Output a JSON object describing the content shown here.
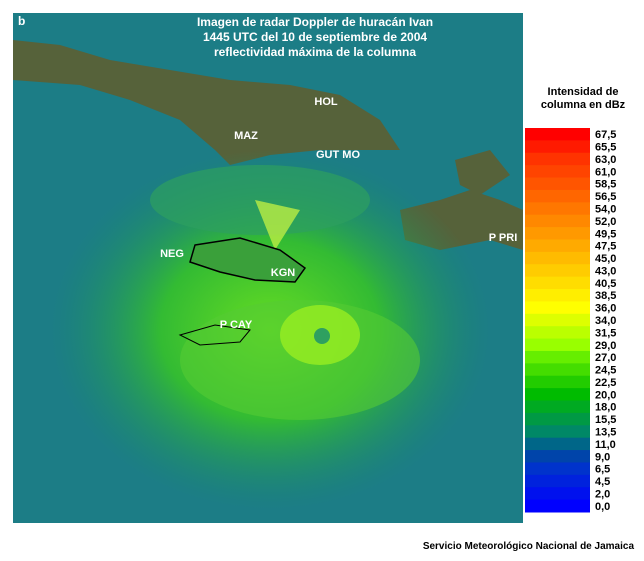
{
  "panel_letter": "b",
  "title": [
    "Imagen de radar Doppler de huracán Ivan",
    "1445 UTC del 10 de septiembre de 2004",
    "reflectividad máxima de la columna"
  ],
  "stations": [
    "HOL",
    "MAZ",
    "GUT MO",
    "NEG",
    "KGN",
    "P CAY",
    "P PRI"
  ],
  "legend": {
    "title": [
      "Intensidad de",
      "columna en dBz"
    ],
    "items": [
      {
        "label": "67,5",
        "color": "#ff0000"
      },
      {
        "label": "65,5",
        "color": "#ff1a00"
      },
      {
        "label": "63,0",
        "color": "#ff3300"
      },
      {
        "label": "61,0",
        "color": "#ff4400"
      },
      {
        "label": "58,5",
        "color": "#ff5500"
      },
      {
        "label": "56,5",
        "color": "#ff6600"
      },
      {
        "label": "54,0",
        "color": "#ff7700"
      },
      {
        "label": "52,0",
        "color": "#ff8800"
      },
      {
        "label": "49,5",
        "color": "#ff9900"
      },
      {
        "label": "47,5",
        "color": "#ffaa00"
      },
      {
        "label": "45,0",
        "color": "#ffbb00"
      },
      {
        "label": "43,0",
        "color": "#ffcc00"
      },
      {
        "label": "40,5",
        "color": "#ffdd00"
      },
      {
        "label": "38,5",
        "color": "#ffee00"
      },
      {
        "label": "36,0",
        "color": "#ffff00"
      },
      {
        "label": "34,0",
        "color": "#ddff00"
      },
      {
        "label": "31,5",
        "color": "#bbff00"
      },
      {
        "label": "29,0",
        "color": "#99ff00"
      },
      {
        "label": "27,0",
        "color": "#66ee00"
      },
      {
        "label": "24,5",
        "color": "#44dd00"
      },
      {
        "label": "22,5",
        "color": "#22cc00"
      },
      {
        "label": "20,0",
        "color": "#00bb00"
      },
      {
        "label": "18,0",
        "color": "#00aa22"
      },
      {
        "label": "15,5",
        "color": "#009944"
      },
      {
        "label": "13,5",
        "color": "#008866"
      },
      {
        "label": "11,0",
        "color": "#006688"
      },
      {
        "label": "9,0",
        "color": "#0044aa"
      },
      {
        "label": "6,5",
        "color": "#0033cc"
      },
      {
        "label": "4,5",
        "color": "#0022dd"
      },
      {
        "label": "2,0",
        "color": "#0011ee"
      },
      {
        "label": "0,0",
        "color": "#0000ff"
      }
    ]
  },
  "footer": "Servicio Meteorológico Nacional de Jamaica"
}
